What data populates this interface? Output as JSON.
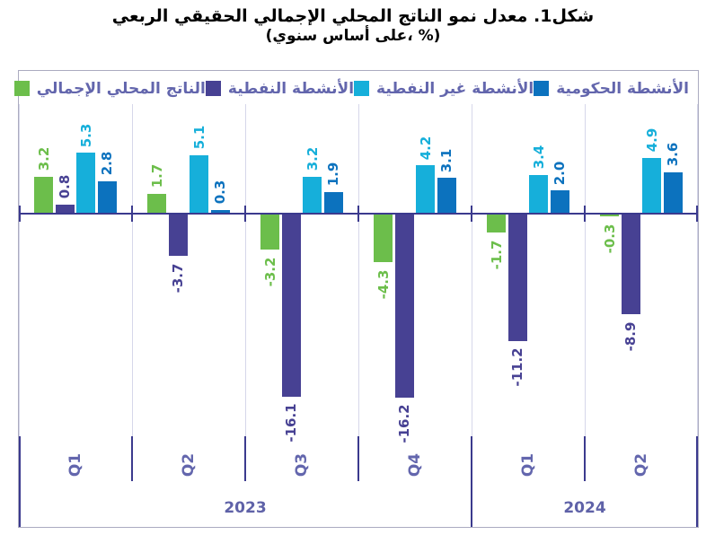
{
  "title": {
    "line1": "شكل1. معدل نمو الناتج المحلي الإجمالي الحقيقي الربعي",
    "line2": "(على أساس سنوي، %)"
  },
  "colors": {
    "gdp_green": "#6cbe4b",
    "oil_purple": "#474193",
    "non_oil_cyan": "#16afda",
    "government_blue": "#0c72be",
    "axis_indigo": "#3b3a8e",
    "label_purple": "#6366ad",
    "gridline": "#d6d7ea",
    "frame_border": "#ababc0"
  },
  "chart_data": {
    "type": "bar",
    "categories": [
      "Q1",
      "Q2",
      "Q3",
      "Q4",
      "Q1",
      "Q2"
    ],
    "year_groups": [
      {
        "label": "2023",
        "span": 4
      },
      {
        "label": "2024",
        "span": 2
      }
    ],
    "series": [
      {
        "key": "gdp",
        "name": "الناتج المحلي الإجمالي",
        "color": "#6cbe4b",
        "values": [
          3.2,
          1.7,
          -3.2,
          -4.3,
          -1.7,
          -0.3
        ]
      },
      {
        "key": "oil",
        "name": "الأنشطة النفطية",
        "color": "#474193",
        "values": [
          0.8,
          -3.7,
          -16.1,
          -16.2,
          -11.2,
          -8.9
        ]
      },
      {
        "key": "non-oil",
        "name": "الأنشطة غير النفطية",
        "color": "#16afda",
        "values": [
          5.3,
          5.1,
          3.2,
          4.2,
          3.4,
          4.9
        ]
      },
      {
        "key": "government",
        "name": "الأنشطة الحكومية",
        "color": "#0c72be",
        "values": [
          2.8,
          0.3,
          1.9,
          3.1,
          2.0,
          3.6
        ]
      }
    ],
    "ylim": [
      -19.6,
      9.6
    ],
    "legend_position": "top",
    "grid": "vertical-category-separators-only",
    "value_labels": "rotated-90-matching-series-color"
  }
}
